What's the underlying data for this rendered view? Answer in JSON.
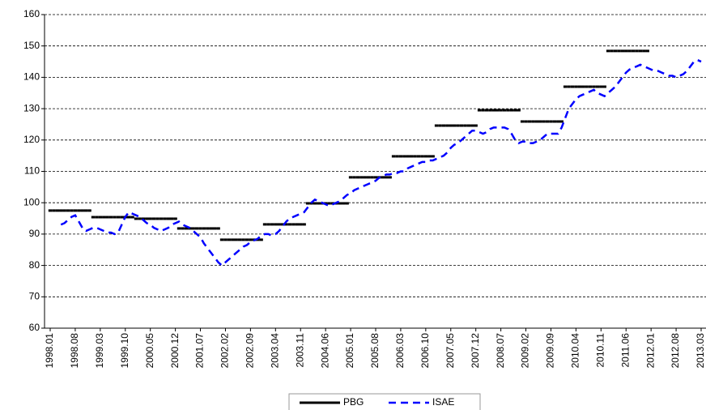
{
  "chart_data": {
    "type": "line",
    "categories": [
      "1998.01",
      null,
      null,
      null,
      null,
      null,
      null,
      "1998.08",
      null,
      null,
      null,
      null,
      null,
      null,
      "1999.03",
      null,
      null,
      null,
      null,
      null,
      null,
      "1999.10",
      null,
      null,
      null,
      null,
      null,
      null,
      "2000.05",
      null,
      null,
      null,
      null,
      null,
      null,
      "2000.12",
      null,
      null,
      null,
      null,
      null,
      null,
      "2001.07",
      null,
      null,
      null,
      null,
      null,
      null,
      "2002.02",
      null,
      null,
      null,
      null,
      null,
      null,
      "2002.09",
      null,
      null,
      null,
      null,
      null,
      null,
      "2003.04",
      null,
      null,
      null,
      null,
      null,
      null,
      "2003.11",
      null,
      null,
      null,
      null,
      null,
      null,
      "2004.06",
      null,
      null,
      null,
      null,
      null,
      null,
      "2005.01",
      null,
      null,
      null,
      null,
      null,
      null,
      "2005.08",
      null,
      null,
      null,
      null,
      null,
      null,
      "2006.03",
      null,
      null,
      null,
      null,
      null,
      null,
      "2006.10",
      null,
      null,
      null,
      null,
      null,
      null,
      "2007.05",
      null,
      null,
      null,
      null,
      null,
      null,
      "2007.12",
      null,
      null,
      null,
      null,
      null,
      null,
      "2008.07",
      null,
      null,
      null,
      null,
      null,
      null,
      "2009.02",
      null,
      null,
      null,
      null,
      null,
      null,
      "2009.09",
      null,
      null,
      null,
      null,
      null,
      null,
      "2010.04",
      null,
      null,
      null,
      null,
      null,
      null,
      "2010.11",
      null,
      null,
      null,
      null,
      null,
      null,
      "2011.06",
      null,
      null,
      null,
      null,
      null,
      null,
      "2012.01",
      null,
      null,
      null,
      null,
      null,
      null,
      "2012.08",
      null,
      null,
      null,
      null,
      null,
      null,
      "2013.03"
    ],
    "series": [
      {
        "name": "PBG",
        "color": "#000000",
        "line_style": "solid",
        "step": true,
        "values": [
          97.5,
          97.5,
          97.5,
          97.5,
          97.5,
          97.5,
          97.5,
          97.5,
          97.5,
          97.5,
          97.5,
          97.5,
          95.4,
          95.4,
          95.4,
          95.4,
          95.4,
          95.4,
          95.4,
          95.4,
          95.4,
          95.4,
          95.4,
          95.4,
          94.9,
          94.9,
          94.9,
          94.9,
          94.9,
          94.9,
          94.9,
          94.9,
          94.9,
          94.9,
          94.9,
          94.9,
          91.8,
          91.8,
          91.8,
          91.8,
          91.8,
          91.8,
          91.8,
          91.8,
          91.8,
          91.8,
          91.8,
          91.8,
          88.2,
          88.2,
          88.2,
          88.2,
          88.2,
          88.2,
          88.2,
          88.2,
          88.2,
          88.2,
          88.2,
          88.2,
          93.1,
          93.1,
          93.1,
          93.1,
          93.1,
          93.1,
          93.1,
          93.1,
          93.1,
          93.1,
          93.1,
          93.1,
          99.8,
          99.8,
          99.8,
          99.8,
          99.8,
          99.8,
          99.8,
          99.8,
          99.8,
          99.8,
          99.8,
          99.8,
          108.1,
          108.1,
          108.1,
          108.1,
          108.1,
          108.1,
          108.1,
          108.1,
          108.1,
          108.1,
          108.1,
          108.1,
          114.8,
          114.8,
          114.8,
          114.8,
          114.8,
          114.8,
          114.8,
          114.8,
          114.8,
          114.8,
          114.8,
          114.8,
          124.6,
          124.6,
          124.6,
          124.6,
          124.6,
          124.6,
          124.6,
          124.6,
          124.6,
          124.6,
          124.6,
          124.6,
          129.5,
          129.5,
          129.5,
          129.5,
          129.5,
          129.5,
          129.5,
          129.5,
          129.5,
          129.5,
          129.5,
          129.5,
          125.9,
          125.9,
          125.9,
          125.9,
          125.9,
          125.9,
          125.9,
          125.9,
          125.9,
          125.9,
          125.9,
          125.9,
          137,
          137,
          137,
          137,
          137,
          137,
          137,
          137,
          137,
          137,
          137,
          137,
          148.4,
          148.4,
          148.4,
          148.4,
          148.4,
          148.4,
          148.4,
          148.4,
          148.4,
          148.4,
          148.4,
          148.4,
          null,
          null,
          null,
          null,
          null,
          null,
          null,
          null,
          null,
          null,
          null,
          null,
          null,
          null,
          null
        ]
      },
      {
        "name": "ISAE",
        "color": "#0000ff",
        "line_style": "dashed",
        "values": [
          null,
          null,
          null,
          93,
          93.5,
          94.5,
          95.5,
          96,
          94,
          92,
          91,
          91.5,
          92,
          92,
          91.5,
          91,
          90.5,
          90.5,
          90,
          90.5,
          93,
          95.5,
          97,
          96.5,
          96,
          95.5,
          94.5,
          93.5,
          93,
          92,
          91.5,
          91,
          91.5,
          92,
          93,
          93.5,
          94,
          93,
          92.5,
          92,
          91,
          90,
          89,
          87,
          85.5,
          84,
          82.5,
          81,
          80,
          81,
          82,
          83,
          84,
          85,
          86,
          86.5,
          87.5,
          88,
          88.5,
          89.5,
          90,
          90,
          89.5,
          90,
          91,
          92.5,
          94,
          95,
          95.5,
          96,
          96.5,
          97,
          98.5,
          100,
          101,
          100.5,
          100,
          99.5,
          99,
          99.5,
          100,
          100.5,
          101.5,
          102.5,
          103,
          104,
          104.5,
          105,
          105.5,
          106,
          106.5,
          107,
          108,
          108.5,
          109,
          109,
          109.5,
          109.5,
          110,
          110,
          111,
          111.5,
          112,
          112.5,
          113,
          113,
          113.5,
          113.5,
          114,
          114.5,
          115,
          116,
          117.5,
          118.5,
          119,
          120,
          121,
          122,
          123,
          123,
          122.5,
          122,
          122.5,
          123.5,
          124,
          124,
          124,
          124,
          123.5,
          122,
          120,
          119,
          119.5,
          119.5,
          119,
          119,
          119.5,
          120,
          121,
          122,
          122,
          122,
          122,
          124,
          127,
          130,
          131.5,
          133,
          134,
          134.5,
          135,
          135.5,
          136,
          135,
          134.5,
          134,
          135,
          136,
          137,
          138.5,
          140,
          141.5,
          142.5,
          143,
          143.5,
          144,
          143.5,
          143,
          142.5,
          142,
          142,
          141.5,
          141,
          140.5,
          140.5,
          140,
          140.5,
          141,
          142,
          143.5,
          145,
          145.5,
          145
        ]
      }
    ],
    "ylim": [
      60,
      160
    ],
    "yticks": [
      60,
      70,
      80,
      90,
      100,
      110,
      120,
      130,
      140,
      150,
      160
    ],
    "grid": true,
    "legend": "bottom"
  }
}
